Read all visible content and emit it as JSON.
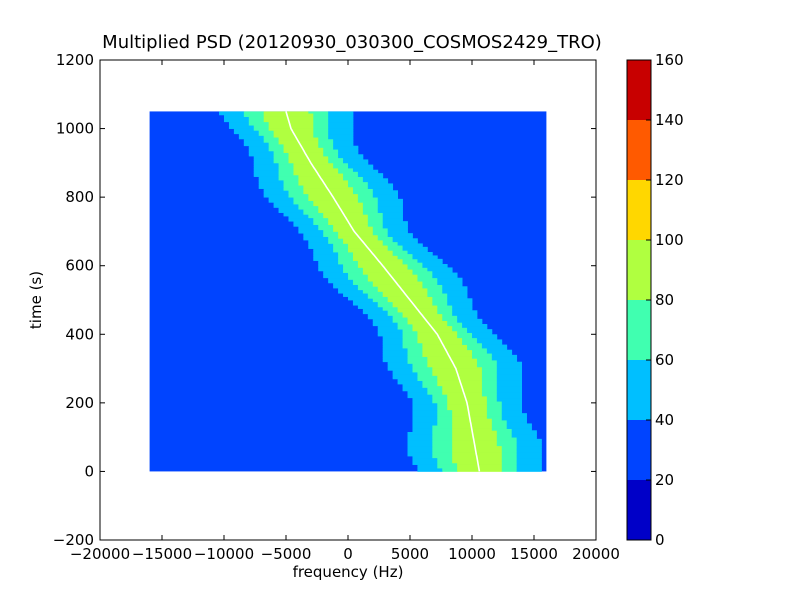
{
  "chart_data": {
    "type": "heatmap",
    "title": "Multiplied PSD (20120930_030300_COSMOS2429_TRO)",
    "xlabel": "frequency (Hz)",
    "ylabel": "time (s)",
    "xlim": [
      -20000,
      20000
    ],
    "ylim": [
      -200,
      1200
    ],
    "xticks": [
      -20000,
      -15000,
      -10000,
      -5000,
      0,
      5000,
      10000,
      15000,
      20000
    ],
    "xtick_labels": [
      "−20000",
      "−15000",
      "−10000",
      "−5000",
      "0",
      "5000",
      "10000",
      "15000",
      "20000"
    ],
    "yticks": [
      -200,
      0,
      200,
      400,
      600,
      800,
      1000,
      1200
    ],
    "ytick_labels": [
      "−200",
      "0",
      "200",
      "400",
      "600",
      "800",
      "1000",
      "1200"
    ],
    "grid": false,
    "extent": {
      "freq": [
        -16000,
        16000
      ],
      "time": [
        0,
        1050
      ]
    },
    "background_level": 25,
    "main_trace": {
      "description_points": [
        {
          "time": 1050,
          "freq": -5000
        },
        {
          "time": 1000,
          "freq": -4600
        },
        {
          "time": 900,
          "freq": -3000
        },
        {
          "time": 800,
          "freq": -1200
        },
        {
          "time": 700,
          "freq": 500
        },
        {
          "time": 600,
          "freq": 2800
        },
        {
          "time": 500,
          "freq": 5000
        },
        {
          "time": 400,
          "freq": 7200
        },
        {
          "time": 300,
          "freq": 8700
        },
        {
          "time": 200,
          "freq": 9600
        },
        {
          "time": 100,
          "freq": 10100
        },
        {
          "time": 0,
          "freq": 10600
        }
      ],
      "peak_level": 90
    },
    "colorbar": {
      "levels": [
        0,
        20,
        40,
        60,
        80,
        100,
        120,
        140,
        160
      ],
      "tick_labels": [
        "0",
        "20",
        "40",
        "60",
        "80",
        "100",
        "120",
        "140",
        "160"
      ],
      "colors": [
        "#0000c8",
        "#0044ff",
        "#00bfff",
        "#40ffb0",
        "#b0ff40",
        "#ffd700",
        "#ff5a00",
        "#c80000"
      ]
    }
  }
}
